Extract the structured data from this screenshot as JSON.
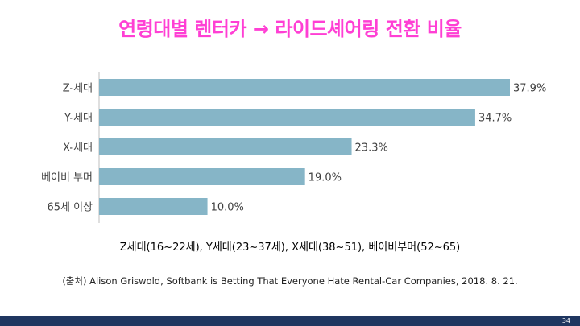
{
  "title": "연령대별 렌터카 → 라이드셰어링 전환 비율",
  "colors": {
    "title": "#ff3fd4",
    "bar": "#86b5c7",
    "footer": "#1f3660",
    "axis": "#bfbfbf",
    "label": "#404040"
  },
  "chart_data": {
    "type": "bar",
    "orientation": "horizontal",
    "categories": [
      "Z-세대",
      "Y-세대",
      "X-세대",
      "베이비 부머",
      "65세 이상"
    ],
    "values": [
      37.9,
      34.7,
      23.3,
      19.0,
      10.0
    ],
    "value_labels": [
      "37.9%",
      "34.7%",
      "23.3%",
      "19.0%",
      "10.0%"
    ],
    "xlim": [
      0,
      40
    ],
    "grid": false,
    "legend": "none"
  },
  "note": "Z세대(16~22세), Y세대(23~37세), X세대(38~51), 베이비부머(52~65)",
  "source": "(출처) Alison Griswold, Softbank is Betting That Everyone Hate Rental-Car Companies, 2018. 8. 21.",
  "page_number": "34"
}
